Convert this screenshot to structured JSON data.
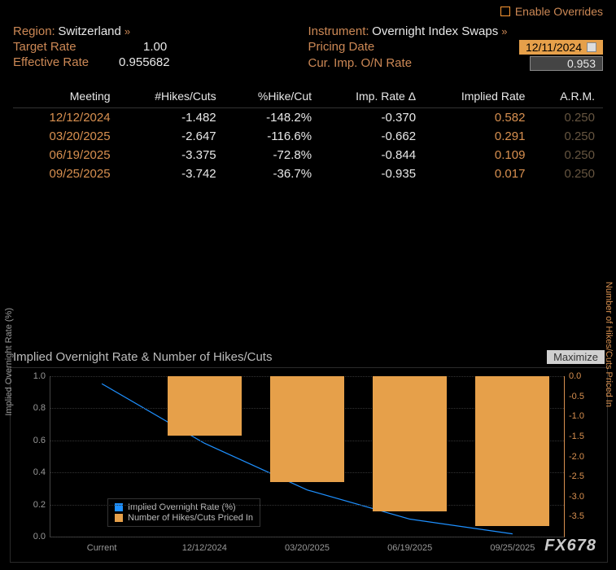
{
  "enable_overrides_label": "Enable Overrides",
  "header": {
    "region_label": "Region:",
    "region_value": "Switzerland",
    "instrument_label": "Instrument:",
    "instrument_value": "Overnight Index Swaps",
    "target_rate_label": "Target Rate",
    "target_rate_value": "1.00",
    "effective_rate_label": "Effective Rate",
    "effective_rate_value": "0.955682",
    "pricing_date_label": "Pricing Date",
    "pricing_date_value": "12/11/2024",
    "cur_imp_label": "Cur. Imp. O/N Rate",
    "cur_imp_value": "0.953"
  },
  "table": {
    "columns": [
      "Meeting",
      "#Hikes/Cuts",
      "%Hike/Cut",
      "Imp. Rate Δ",
      "Implied Rate",
      "A.R.M."
    ],
    "rows": [
      [
        "12/12/2024",
        "-1.482",
        "-148.2%",
        "-0.370",
        "0.582",
        "0.250"
      ],
      [
        "03/20/2025",
        "-2.647",
        "-116.6%",
        "-0.662",
        "0.291",
        "0.250"
      ],
      [
        "06/19/2025",
        "-3.375",
        "-72.8%",
        "-0.844",
        "0.109",
        "0.250"
      ],
      [
        "09/25/2025",
        "-3.742",
        "-36.7%",
        "-0.935",
        "0.017",
        "0.250"
      ]
    ]
  },
  "chart": {
    "title": "Implied Overnight Rate & Number of Hikes/Cuts",
    "maximize_label": "Maximize",
    "type": "combo-bar-line",
    "left_axis_label": "Implied Overnight Rate (%)",
    "right_axis_label": "Number of Hikes/Cuts Priced In",
    "left_ylim": [
      0.0,
      1.0
    ],
    "left_yticks": [
      0.0,
      0.2,
      0.4,
      0.6,
      0.8,
      1.0
    ],
    "right_ylim": [
      -4.0,
      0.0
    ],
    "right_yticks": [
      0.0,
      -0.5,
      -1.0,
      -1.5,
      -2.0,
      -2.5,
      -3.0,
      -3.5
    ],
    "x_categories": [
      "Current",
      "12/12/2024",
      "03/20/2025",
      "06/19/2025",
      "09/25/2025"
    ],
    "line_series": {
      "label": "Implied Overnight Rate (%)",
      "color": "#1e90ff",
      "values": [
        0.953,
        0.582,
        0.291,
        0.109,
        0.017
      ]
    },
    "bar_series": {
      "label": "Number of Hikes/Cuts Priced In",
      "color": "#e6a04a",
      "values": [
        null,
        -1.482,
        -2.647,
        -3.375,
        -3.742
      ]
    },
    "colors": {
      "background": "#000000",
      "grid": "#333333",
      "left_axis_text": "#999999",
      "right_axis_text": "#d89050"
    },
    "legend_items": [
      {
        "label": "Implied Overnight Rate (%)",
        "color": "#1e90ff"
      },
      {
        "label": "Number of Hikes/Cuts Priced In",
        "color": "#e6a04a"
      }
    ]
  },
  "watermark": "FX678"
}
